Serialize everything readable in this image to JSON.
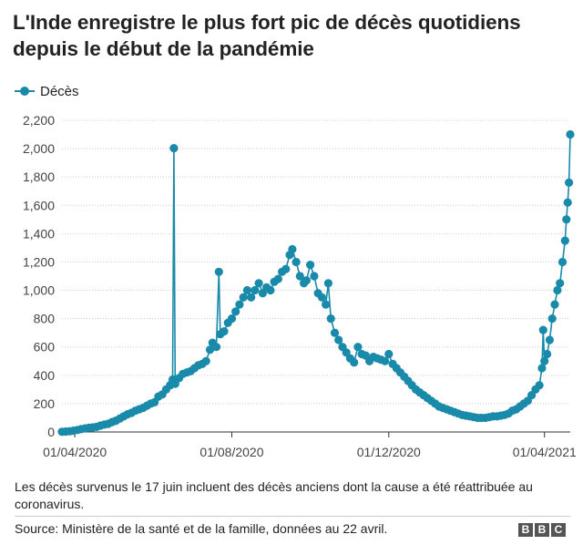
{
  "title": "L'Inde enregistre le plus fort pic de décès quotidiens depuis le début de la pandémie",
  "legend": {
    "label": "Décès",
    "color": "#1a8aaa"
  },
  "note": "Les décès survenus le 17 juin incluent des décès anciens dont la cause a été réattribuée au coronavirus.",
  "source": "Source: Ministère de la santé et de la famille, données au 22 avril.",
  "logo": [
    "B",
    "B",
    "C"
  ],
  "chart_data": {
    "type": "line",
    "series": [
      {
        "name": "Décès",
        "color": "#1a8aaa",
        "points": [
          [
            "2020-03-22",
            1
          ],
          [
            "2020-03-25",
            3
          ],
          [
            "2020-03-28",
            5
          ],
          [
            "2020-03-31",
            9
          ],
          [
            "2020-04-03",
            14
          ],
          [
            "2020-04-06",
            20
          ],
          [
            "2020-04-09",
            25
          ],
          [
            "2020-04-12",
            30
          ],
          [
            "2020-04-15",
            32
          ],
          [
            "2020-04-18",
            36
          ],
          [
            "2020-04-21",
            45
          ],
          [
            "2020-04-24",
            52
          ],
          [
            "2020-04-27",
            58
          ],
          [
            "2020-04-30",
            70
          ],
          [
            "2020-05-03",
            80
          ],
          [
            "2020-05-06",
            95
          ],
          [
            "2020-05-09",
            110
          ],
          [
            "2020-05-12",
            125
          ],
          [
            "2020-05-15",
            135
          ],
          [
            "2020-05-18",
            150
          ],
          [
            "2020-05-21",
            160
          ],
          [
            "2020-05-24",
            170
          ],
          [
            "2020-05-27",
            185
          ],
          [
            "2020-05-30",
            200
          ],
          [
            "2020-06-02",
            210
          ],
          [
            "2020-06-05",
            250
          ],
          [
            "2020-06-08",
            265
          ],
          [
            "2020-06-11",
            300
          ],
          [
            "2020-06-14",
            330
          ],
          [
            "2020-06-16",
            370
          ],
          [
            "2020-06-17",
            2003
          ],
          [
            "2020-06-18",
            340
          ],
          [
            "2020-06-21",
            380
          ],
          [
            "2020-06-24",
            410
          ],
          [
            "2020-06-27",
            420
          ],
          [
            "2020-06-30",
            430
          ],
          [
            "2020-07-03",
            450
          ],
          [
            "2020-07-06",
            470
          ],
          [
            "2020-07-09",
            480
          ],
          [
            "2020-07-12",
            500
          ],
          [
            "2020-07-15",
            580
          ],
          [
            "2020-07-17",
            630
          ],
          [
            "2020-07-20",
            600
          ],
          [
            "2020-07-22",
            1130
          ],
          [
            "2020-07-23",
            690
          ],
          [
            "2020-07-26",
            710
          ],
          [
            "2020-07-29",
            770
          ],
          [
            "2020-08-01",
            800
          ],
          [
            "2020-08-04",
            850
          ],
          [
            "2020-08-07",
            900
          ],
          [
            "2020-08-10",
            950
          ],
          [
            "2020-08-13",
            1000
          ],
          [
            "2020-08-16",
            950
          ],
          [
            "2020-08-19",
            1000
          ],
          [
            "2020-08-22",
            1050
          ],
          [
            "2020-08-25",
            980
          ],
          [
            "2020-08-28",
            1020
          ],
          [
            "2020-08-31",
            1000
          ],
          [
            "2020-09-03",
            1060
          ],
          [
            "2020-09-06",
            1080
          ],
          [
            "2020-09-09",
            1130
          ],
          [
            "2020-09-12",
            1150
          ],
          [
            "2020-09-15",
            1250
          ],
          [
            "2020-09-17",
            1290
          ],
          [
            "2020-09-20",
            1200
          ],
          [
            "2020-09-23",
            1100
          ],
          [
            "2020-09-26",
            1050
          ],
          [
            "2020-09-28",
            1070
          ],
          [
            "2020-10-01",
            1180
          ],
          [
            "2020-10-04",
            1100
          ],
          [
            "2020-10-07",
            980
          ],
          [
            "2020-10-10",
            950
          ],
          [
            "2020-10-13",
            900
          ],
          [
            "2020-10-15",
            1050
          ],
          [
            "2020-10-17",
            800
          ],
          [
            "2020-10-20",
            700
          ],
          [
            "2020-10-23",
            650
          ],
          [
            "2020-10-26",
            600
          ],
          [
            "2020-10-29",
            560
          ],
          [
            "2020-11-01",
            520
          ],
          [
            "2020-11-04",
            490
          ],
          [
            "2020-11-07",
            600
          ],
          [
            "2020-11-10",
            550
          ],
          [
            "2020-11-13",
            540
          ],
          [
            "2020-11-16",
            500
          ],
          [
            "2020-11-19",
            530
          ],
          [
            "2020-11-22",
            520
          ],
          [
            "2020-11-25",
            510
          ],
          [
            "2020-11-28",
            500
          ],
          [
            "2020-12-01",
            550
          ],
          [
            "2020-12-04",
            480
          ],
          [
            "2020-12-07",
            450
          ],
          [
            "2020-12-10",
            420
          ],
          [
            "2020-12-13",
            390
          ],
          [
            "2020-12-16",
            360
          ],
          [
            "2020-12-19",
            330
          ],
          [
            "2020-12-22",
            300
          ],
          [
            "2020-12-25",
            280
          ],
          [
            "2020-12-28",
            260
          ],
          [
            "2020-12-31",
            240
          ],
          [
            "2021-01-03",
            220
          ],
          [
            "2021-01-06",
            200
          ],
          [
            "2021-01-09",
            180
          ],
          [
            "2021-01-12",
            170
          ],
          [
            "2021-01-15",
            160
          ],
          [
            "2021-01-18",
            150
          ],
          [
            "2021-01-21",
            140
          ],
          [
            "2021-01-24",
            130
          ],
          [
            "2021-01-27",
            120
          ],
          [
            "2021-01-30",
            115
          ],
          [
            "2021-02-02",
            110
          ],
          [
            "2021-02-05",
            105
          ],
          [
            "2021-02-08",
            100
          ],
          [
            "2021-02-11",
            100
          ],
          [
            "2021-02-14",
            100
          ],
          [
            "2021-02-17",
            105
          ],
          [
            "2021-02-20",
            110
          ],
          [
            "2021-02-23",
            110
          ],
          [
            "2021-02-26",
            115
          ],
          [
            "2021-03-01",
            120
          ],
          [
            "2021-03-04",
            130
          ],
          [
            "2021-03-07",
            150
          ],
          [
            "2021-03-10",
            160
          ],
          [
            "2021-03-13",
            180
          ],
          [
            "2021-03-16",
            200
          ],
          [
            "2021-03-19",
            220
          ],
          [
            "2021-03-22",
            260
          ],
          [
            "2021-03-25",
            300
          ],
          [
            "2021-03-28",
            330
          ],
          [
            "2021-03-30",
            450
          ],
          [
            "2021-03-31",
            720
          ],
          [
            "2021-04-01",
            500
          ],
          [
            "2021-04-03",
            550
          ],
          [
            "2021-04-05",
            650
          ],
          [
            "2021-04-07",
            800
          ],
          [
            "2021-04-09",
            900
          ],
          [
            "2021-04-11",
            1000
          ],
          [
            "2021-04-13",
            1050
          ],
          [
            "2021-04-15",
            1200
          ],
          [
            "2021-04-17",
            1350
          ],
          [
            "2021-04-18",
            1500
          ],
          [
            "2021-04-19",
            1620
          ],
          [
            "2021-04-20",
            1760
          ],
          [
            "2021-04-21",
            2100
          ]
        ]
      }
    ],
    "x_type": "date",
    "x_range": [
      "2020-03-22",
      "2021-04-21"
    ],
    "x_ticks": [
      {
        "value": "2020-04-01",
        "label": "01/04/2020"
      },
      {
        "value": "2020-08-01",
        "label": "01/08/2020"
      },
      {
        "value": "2020-12-01",
        "label": "01/12/2020"
      },
      {
        "value": "2021-04-01",
        "label": "01/04/2021"
      }
    ],
    "y_ticks": [
      {
        "value": 0,
        "label": "0"
      },
      {
        "value": 200,
        "label": "200"
      },
      {
        "value": 400,
        "label": "400"
      },
      {
        "value": 600,
        "label": "600"
      },
      {
        "value": 800,
        "label": "800"
      },
      {
        "value": 1000,
        "label": "1,000"
      },
      {
        "value": 1200,
        "label": "1,200"
      },
      {
        "value": 1400,
        "label": "1,400"
      },
      {
        "value": 1600,
        "label": "1,600"
      },
      {
        "value": 1800,
        "label": "1,800"
      },
      {
        "value": 2000,
        "label": "2,000"
      },
      {
        "value": 2200,
        "label": "2,200"
      }
    ],
    "ylim": [
      0,
      2200
    ],
    "grid": "horizontal dotted",
    "legend_position": "top-left"
  }
}
